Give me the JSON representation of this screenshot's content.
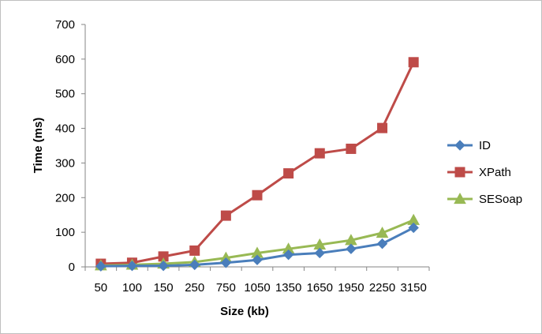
{
  "chart_data": {
    "type": "line",
    "title": "",
    "xlabel": "Size (kb)",
    "ylabel": "Time (ms)",
    "categories": [
      "50",
      "100",
      "150",
      "250",
      "750",
      "1050",
      "1350",
      "1650",
      "1950",
      "2250",
      "3150"
    ],
    "ylim": [
      0,
      700
    ],
    "yticks": [
      "0",
      "100",
      "200",
      "300",
      "400",
      "500",
      "600",
      "700"
    ],
    "grid": false,
    "legend_position": "right",
    "series": [
      {
        "name": "ID",
        "color": "#4a7ebb",
        "marker": "diamond",
        "values": [
          2,
          3,
          3,
          6,
          12,
          20,
          35,
          40,
          52,
          67,
          113
        ]
      },
      {
        "name": "XPath",
        "color": "#be4b48",
        "marker": "square",
        "values": [
          9,
          12,
          30,
          47,
          148,
          207,
          270,
          328,
          341,
          401,
          591
        ]
      },
      {
        "name": "SESoap",
        "color": "#98b954",
        "marker": "triangle",
        "values": [
          4,
          6,
          9,
          14,
          26,
          40,
          52,
          64,
          77,
          98,
          135
        ]
      }
    ]
  }
}
